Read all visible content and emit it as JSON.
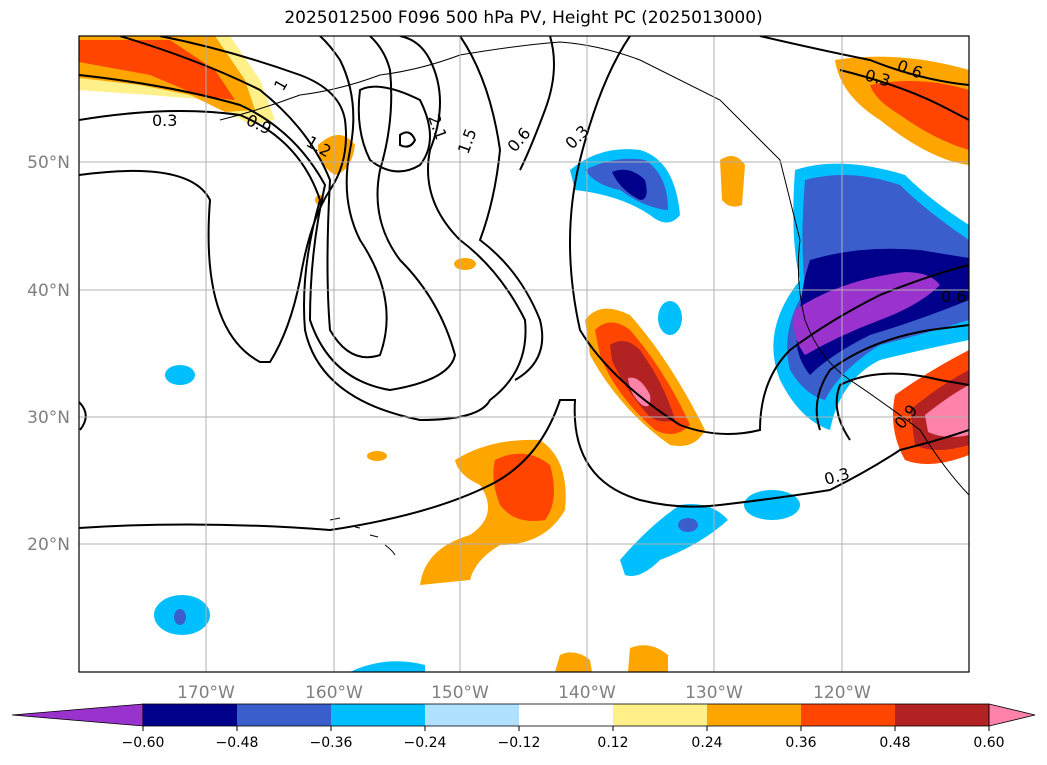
{
  "title": "2025012500 F096 500 hPa PV, Height PC (2025013000)",
  "map": {
    "lon_labels": [
      "170°W",
      "160°W",
      "150°W",
      "140°W",
      "130°W",
      "120°W"
    ],
    "lat_labels": [
      "50°N",
      "40°N",
      "30°N",
      "20°N"
    ],
    "contour_labels": [
      "0.3",
      "0.9",
      "1.2",
      "1",
      "2.1",
      "1.5",
      "0.6",
      "0.3",
      "0.6",
      "0.3",
      "0.6",
      "0.9",
      "0.3"
    ],
    "grid": true
  },
  "colorbar": {
    "ticks": [
      "−0.60",
      "−0.48",
      "−0.36",
      "−0.24",
      "−0.12",
      "0.12",
      "0.24",
      "0.36",
      "0.48",
      "0.60"
    ],
    "colors": [
      "#9a32cd",
      "#00008b",
      "#3a5fcd",
      "#00bfff",
      "#b0e2ff",
      "#ffffff",
      "#fff08a",
      "#ffa500",
      "#ff4500",
      "#b22222",
      "#ff82ab"
    ],
    "extend": "both"
  }
}
